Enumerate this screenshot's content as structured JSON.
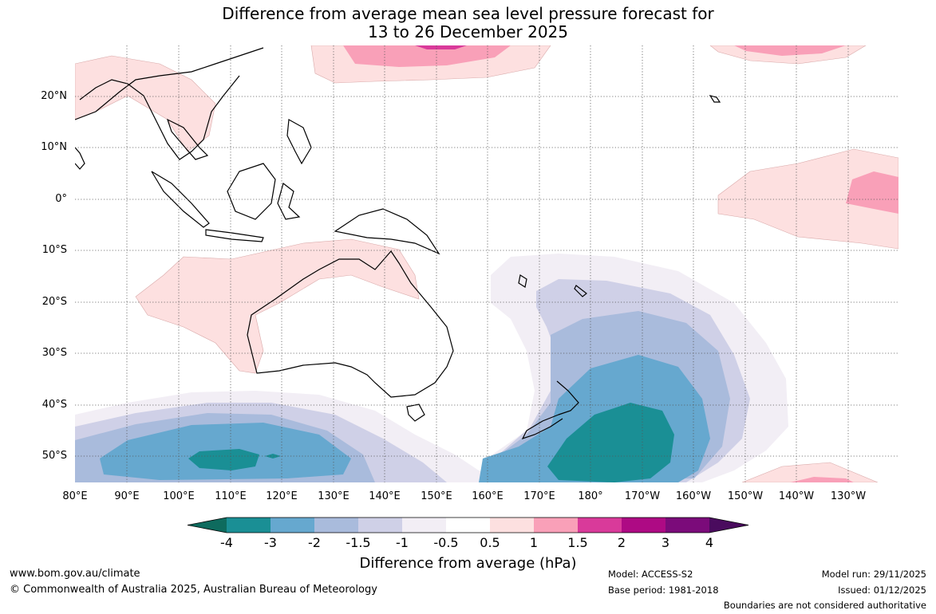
{
  "title_line1": "Difference from average mean sea level pressure forecast for",
  "title_line2": "13 to 26 December 2025",
  "lat_labels": [
    "20°N",
    "10°N",
    "0°",
    "10°S",
    "20°S",
    "30°S",
    "40°S",
    "50°S"
  ],
  "lon_labels": [
    "80°E",
    "90°E",
    "100°E",
    "110°E",
    "120°E",
    "130°E",
    "140°E",
    "150°E",
    "160°E",
    "170°E",
    "180°",
    "170°W",
    "160°W",
    "150°W",
    "140°W",
    "130°W"
  ],
  "colorbar": {
    "title": "Difference from average (hPa)",
    "tick_labels": [
      "-4",
      "-3",
      "-2",
      "-1.5",
      "-1",
      "-0.5",
      "0.5",
      "1",
      "1.5",
      "2",
      "3",
      "4"
    ],
    "colors": [
      "#0e6b5e",
      "#1a8f95",
      "#66a8cf",
      "#a9bbdc",
      "#cfd0e7",
      "#f2eef5",
      "#ffffff",
      "#fde0e0",
      "#f9a0b8",
      "#d93a9a",
      "#ae0a84",
      "#7b0b7a",
      "#4a0b5e"
    ]
  },
  "footer": {
    "url": "www.bom.gov.au/climate",
    "copyright": "© Commonwealth of Australia 2025, Australian Bureau of Meteorology",
    "model": "Model: ACCESS-S2",
    "base_period": "Base period: 1981-2018",
    "model_run": "Model run: 29/11/2025",
    "issued": "Issued: 01/12/2025",
    "boundaries": "Boundaries are not considered authoritative"
  }
}
